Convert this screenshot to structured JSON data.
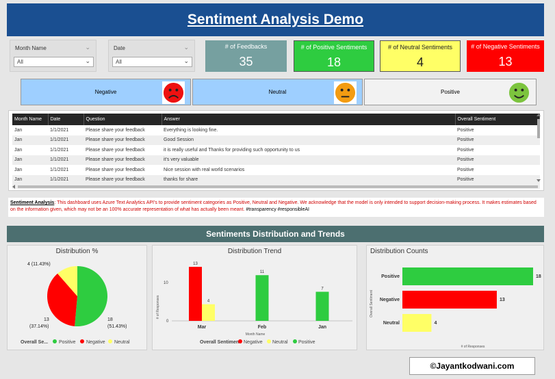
{
  "header": {
    "title": "Sentiment Analysis Demo"
  },
  "slicers": [
    {
      "label": "Month Name",
      "value": "All"
    },
    {
      "label": "Date",
      "value": "All"
    }
  ],
  "kpis": [
    {
      "title": "# of Feedbacks",
      "value": "35",
      "color": "#76a0a0"
    },
    {
      "title": "# of Positive Sentiments",
      "value": "18",
      "color": "#2ecc40"
    },
    {
      "title": "# of Neutral Sentiments",
      "value": "4",
      "color": "#ffff66"
    },
    {
      "title": "# of Negative Sentiments",
      "value": "13",
      "color": "#ff0000"
    }
  ],
  "sentiment_buttons": {
    "negative": "Negative",
    "neutral": "Neutral",
    "positive": "Positive"
  },
  "table": {
    "headers": [
      "Month Name",
      "Date",
      "Question",
      "Answer",
      "Overall Sentiment"
    ],
    "rows": [
      [
        "Jan",
        "1/1/2021",
        "Please share your feedback",
        "Everything is looking fine.",
        "Positive"
      ],
      [
        "Jan",
        "1/1/2021",
        "Please share your feedback",
        "Good Session",
        "Positive"
      ],
      [
        "Jan",
        "1/1/2021",
        "Please share your feedback",
        "it is really useful and Thanks for providing such opportunity to us",
        "Positive"
      ],
      [
        "Jan",
        "1/1/2021",
        "Please share your feedback",
        "it's very valuable",
        "Positive"
      ],
      [
        "Jan",
        "1/1/2021",
        "Please share your feedback",
        "Nice session with real world scenarios",
        "Positive"
      ],
      [
        "Jan",
        "1/1/2021",
        "Please share your feedback",
        "thanks for share",
        "Positive"
      ]
    ]
  },
  "note": {
    "label": "Sentiment Analysis",
    "text": ": This dashboard uses Azure Text Analytics API's to provide sentiment categories as Positive, Neutral and Negative.  We acknowledge that the model is only intended to support decision-making process.  It makes estimates based on the information given, which may not be an 100% accurate representation of what has actually been meant.",
    "tags": " #transparency #responsibleAI"
  },
  "section_title": "Sentiments Distribution and Trends",
  "colors": {
    "positive": "#2ecc40",
    "negative": "#ff0000",
    "neutral": "#ffff66"
  },
  "chart_data": [
    {
      "type": "pie",
      "title": "Distribution %",
      "legend_title": "Overall Se...",
      "legend": [
        "Positive",
        "Negative",
        "Neutral"
      ],
      "slices": [
        {
          "label": "Positive",
          "value": 18,
          "pct": "51.43%"
        },
        {
          "label": "Negative",
          "value": 13,
          "pct": "37.14%"
        },
        {
          "label": "Neutral",
          "value": 4,
          "pct": "11.43%"
        }
      ],
      "data_labels": [
        "18",
        "(51.43%)",
        "13",
        "(37.14%)",
        "4 (11.43%)"
      ]
    },
    {
      "type": "bar",
      "title": "Distribution Trend",
      "categories": [
        "Mar",
        "Feb",
        "Jan"
      ],
      "series": [
        {
          "name": "Negative",
          "values": [
            13,
            null,
            null
          ]
        },
        {
          "name": "Neutral",
          "values": [
            4,
            null,
            null
          ]
        },
        {
          "name": "Positive",
          "values": [
            null,
            11,
            7
          ]
        }
      ],
      "xlabel": "Month Name",
      "ylabel": "# of Responses",
      "yticks": [
        "0",
        "10"
      ],
      "ylim": [
        0,
        14
      ],
      "legend_title": "Overall Sentiment"
    },
    {
      "type": "bar",
      "orientation": "horizontal",
      "title": "Distribution Counts",
      "categories": [
        "Positive",
        "Negative",
        "Neutral"
      ],
      "values": [
        18,
        13,
        4
      ],
      "xlabel": "# of Responses",
      "ylabel": "Overall Sentiment",
      "xlim": [
        0,
        18
      ]
    }
  ],
  "credit": "©Jayantkodwani.com"
}
